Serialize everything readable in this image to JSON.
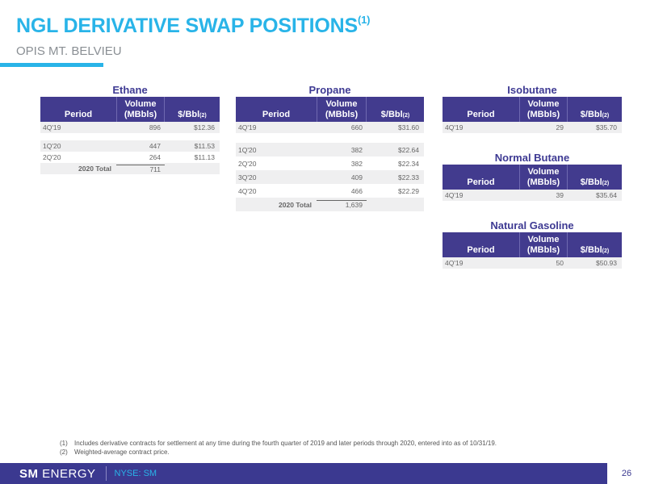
{
  "header": {
    "title": "NGL DERIVATIVE SWAP POSITIONS",
    "title_sup": "(1)",
    "subtitle": "OPIS MT. BELVIEU"
  },
  "headers": {
    "period": "Period",
    "volume_line1": "Volume",
    "volume_line2": "(MBbls)",
    "price": "$/Bbl",
    "price_sup": "(2)"
  },
  "tables": {
    "ethane": {
      "title": "Ethane",
      "rows": [
        {
          "period": "4Q'19",
          "volume": "896",
          "price": "$12.36"
        },
        {
          "period": "1Q'20",
          "volume": "447",
          "price": "$11.53"
        },
        {
          "period": "2Q'20",
          "volume": "264",
          "price": "$11.13"
        }
      ],
      "total": {
        "label": "2020 Total",
        "volume": "711"
      }
    },
    "propane": {
      "title": "Propane",
      "rows": [
        {
          "period": "4Q'19",
          "volume": "660",
          "price": "$31.60"
        },
        {
          "period": "1Q'20",
          "volume": "382",
          "price": "$22.64"
        },
        {
          "period": "2Q'20",
          "volume": "382",
          "price": "$22.34"
        },
        {
          "period": "3Q'20",
          "volume": "409",
          "price": "$22.33"
        },
        {
          "period": "4Q'20",
          "volume": "466",
          "price": "$22.29"
        }
      ],
      "total": {
        "label": "2020 Total",
        "volume": "1,639"
      }
    },
    "isobutane": {
      "title": "Isobutane",
      "rows": [
        {
          "period": "4Q'19",
          "volume": "29",
          "price": "$35.70"
        }
      ]
    },
    "normal_butane": {
      "title": "Normal Butane",
      "rows": [
        {
          "period": "4Q'19",
          "volume": "39",
          "price": "$35.64"
        }
      ]
    },
    "natural_gasoline": {
      "title": "Natural Gasoline",
      "rows": [
        {
          "period": "4Q'19",
          "volume": "50",
          "price": "$50.93"
        }
      ]
    }
  },
  "footnotes": [
    {
      "num": "(1)",
      "text": "Includes derivative contracts for settlement at any time during the fourth quarter of 2019 and later periods through 2020, entered into as of 10/31/19."
    },
    {
      "num": "(2)",
      "text": "Weighted-average contract price."
    }
  ],
  "footer": {
    "logo_bold": "SM",
    "logo_rest": "ENERGY",
    "ticker": "NYSE: SM",
    "page_number": "26"
  },
  "colors": {
    "accent_cyan": "#29B4E8",
    "header_purple": "#423B8E",
    "footer_purple": "#3B3990"
  }
}
